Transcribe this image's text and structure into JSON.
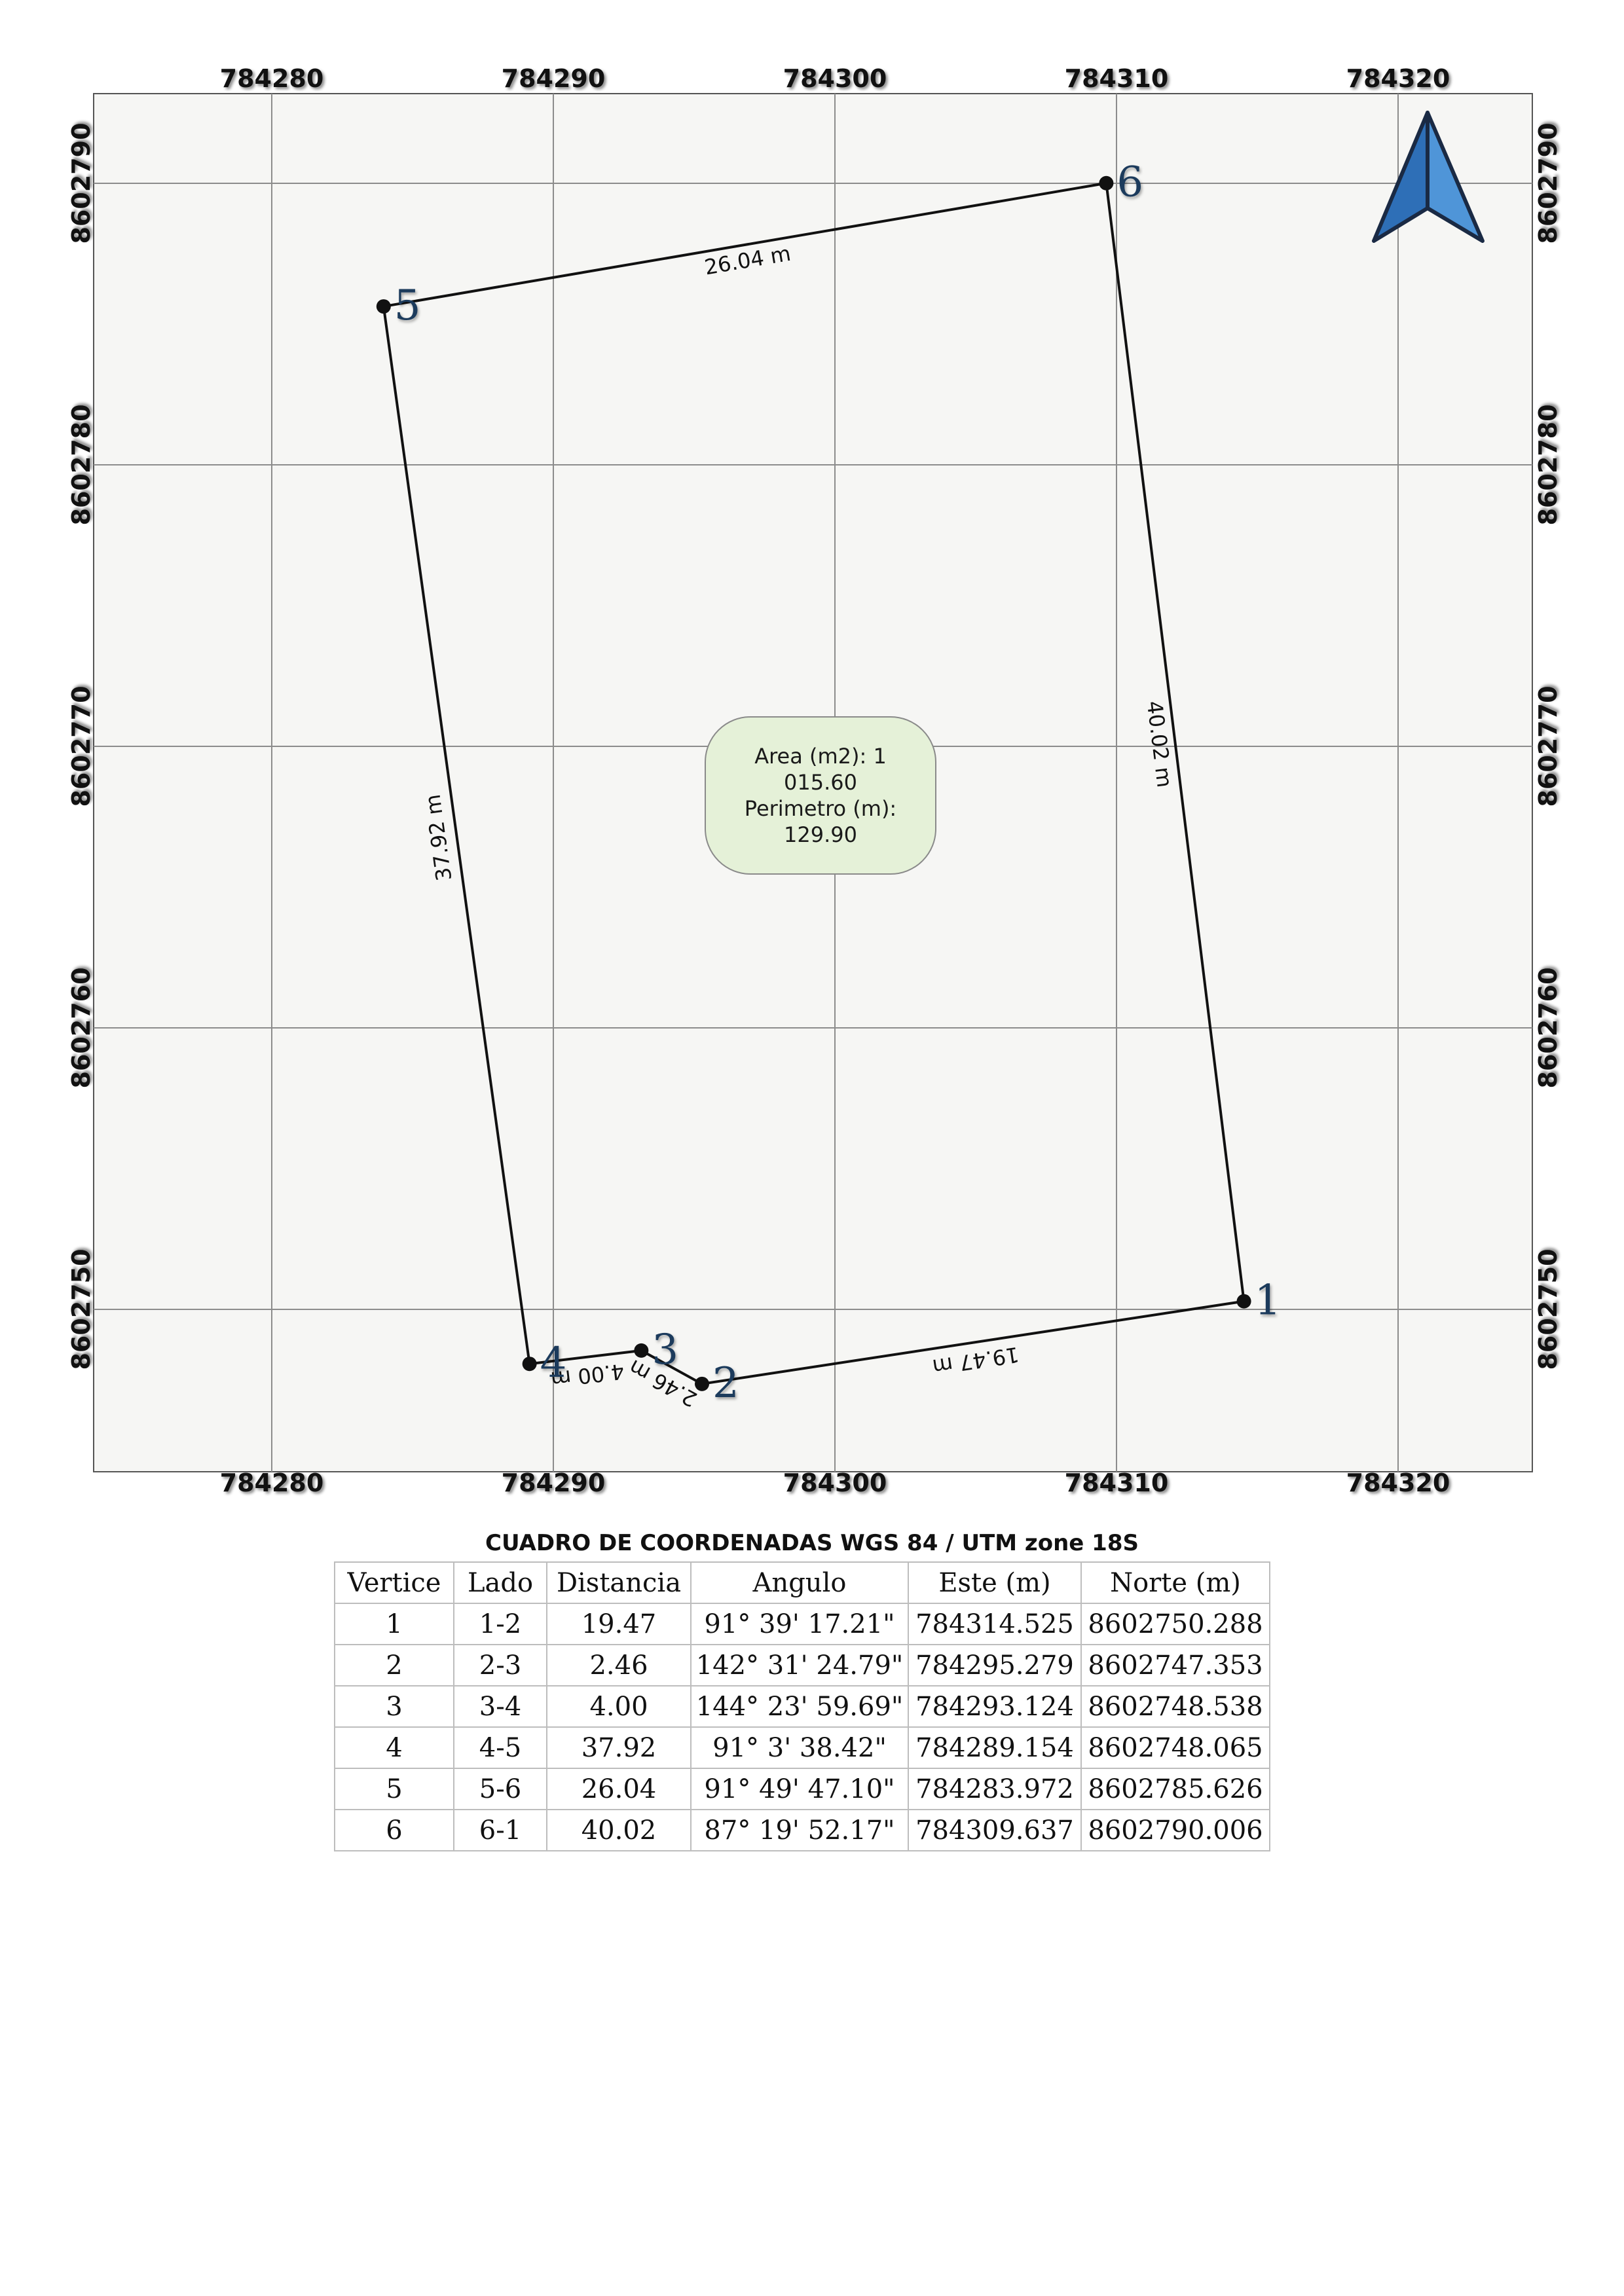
{
  "map": {
    "x_ticks": [
      "784280",
      "784290",
      "784300",
      "784310",
      "784320"
    ],
    "y_ticks": [
      "8602790",
      "8602780",
      "8602770",
      "8602760",
      "8602750"
    ],
    "north_arrow_icon": "north-arrow-icon",
    "colors": {
      "frame_background": "#f6f6f4",
      "grid": "#8c8c8c",
      "boundary": "#111111",
      "vertex_label": "#1b3a5c",
      "area_fill": "#e5f1d8",
      "arrow": "#2e6fb7"
    },
    "vertices": [
      {
        "id": "1",
        "este": 784314.525,
        "norte": 8602750.288
      },
      {
        "id": "2",
        "este": 784295.279,
        "norte": 8602747.353
      },
      {
        "id": "3",
        "este": 784293.124,
        "norte": 8602748.538
      },
      {
        "id": "4",
        "este": 784289.154,
        "norte": 8602748.065
      },
      {
        "id": "5",
        "este": 784283.972,
        "norte": 8602785.626
      },
      {
        "id": "6",
        "este": 784309.637,
        "norte": 8602790.006
      }
    ],
    "side_labels": [
      "19.47 m",
      "2.46 m",
      "4.00 m",
      "37.92 m",
      "26.04 m",
      "40.02 m"
    ],
    "area_box": {
      "area_line1": "Area (m2): 1",
      "area_line2": "015.60",
      "perimeter_line1": "Perimetro (m):",
      "perimeter_line2": "129.90"
    }
  },
  "table": {
    "title": "CUADRO DE COORDENADAS WGS 84 / UTM zone 18S",
    "headers": [
      "Vertice",
      "Lado",
      "Distancia",
      "Angulo",
      "Este (m)",
      "Norte (m)"
    ],
    "rows": [
      [
        "1",
        "1-2",
        "19.47",
        "91° 39' 17.21\"",
        "784314.525",
        "8602750.288"
      ],
      [
        "2",
        "2-3",
        "2.46",
        "142° 31' 24.79\"",
        "784295.279",
        "8602747.353"
      ],
      [
        "3",
        "3-4",
        "4.00",
        "144° 23' 59.69\"",
        "784293.124",
        "8602748.538"
      ],
      [
        "4",
        "4-5",
        "37.92",
        "91° 3' 38.42\"",
        "784289.154",
        "8602748.065"
      ],
      [
        "5",
        "5-6",
        "26.04",
        "91° 49' 47.10\"",
        "784283.972",
        "8602785.626"
      ],
      [
        "6",
        "6-1",
        "40.02",
        "87° 19' 52.17\"",
        "784309.637",
        "8602790.006"
      ]
    ]
  }
}
